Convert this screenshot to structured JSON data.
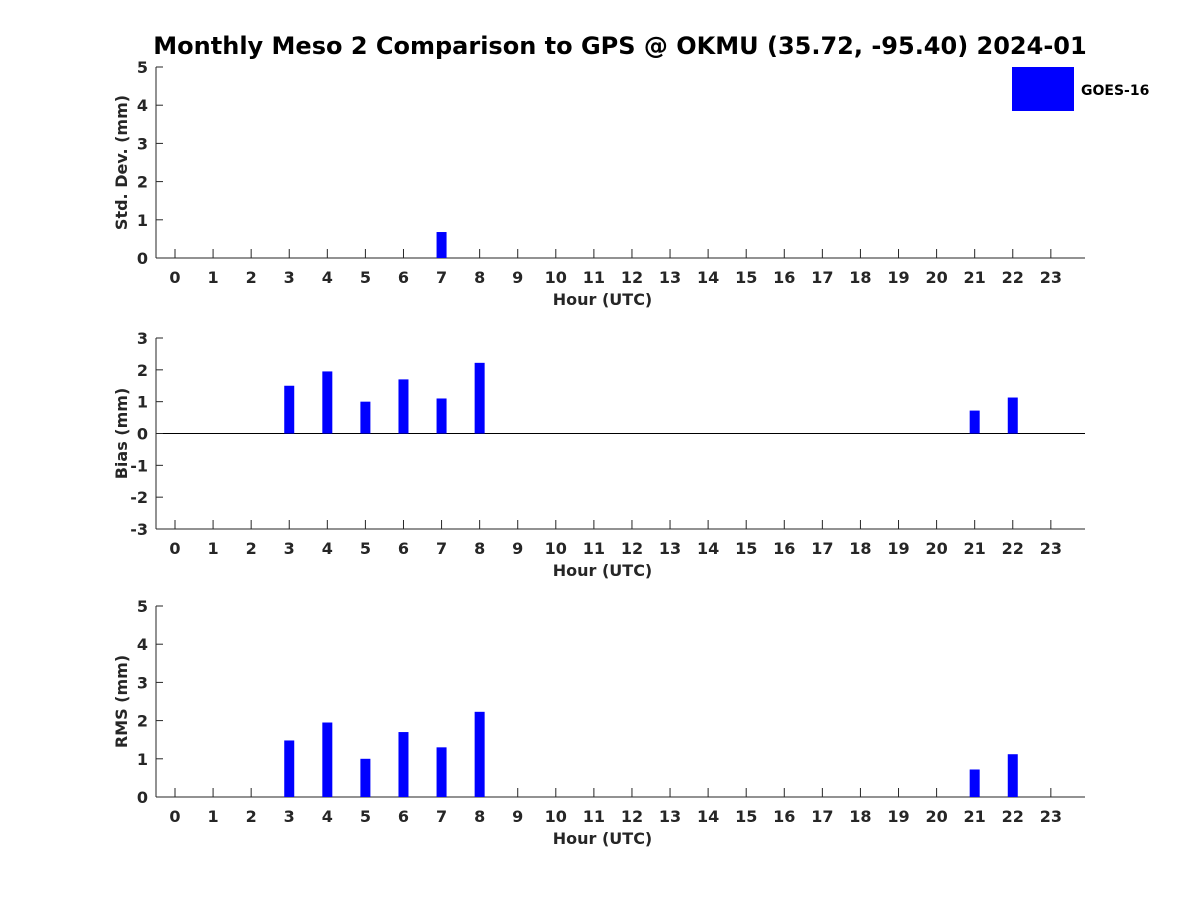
{
  "chart_data": {
    "title": "Monthly Meso 2 Comparison to GPS @ OKMU (35.72, -95.40) 2024-01",
    "legend": {
      "label": "GOES-16",
      "color": "#0000ff",
      "placement": "top-right"
    },
    "bar_color": "#0000ff",
    "grid": false,
    "panels": [
      {
        "id": "stddev",
        "type": "bar",
        "ylabel": "Std. Dev. (mm)",
        "xlabel": "Hour (UTC)",
        "ylim": [
          0,
          5
        ],
        "yticks": [
          "0",
          "1",
          "2",
          "3",
          "4",
          "5"
        ],
        "xticks": [
          "0",
          "1",
          "2",
          "3",
          "4",
          "5",
          "6",
          "7",
          "8",
          "9",
          "10",
          "11",
          "12",
          "13",
          "14",
          "15",
          "16",
          "17",
          "18",
          "19",
          "20",
          "21",
          "22",
          "23"
        ],
        "x": [
          7
        ],
        "values": [
          0.68
        ]
      },
      {
        "id": "bias",
        "type": "bar",
        "ylabel": "Bias (mm)",
        "xlabel": "Hour (UTC)",
        "ylim": [
          -3,
          3
        ],
        "yticks": [
          "-3",
          "-2",
          "-1",
          "0",
          "1",
          "2",
          "3"
        ],
        "xticks": [
          "0",
          "1",
          "2",
          "3",
          "4",
          "5",
          "6",
          "7",
          "8",
          "9",
          "10",
          "11",
          "12",
          "13",
          "14",
          "15",
          "16",
          "17",
          "18",
          "19",
          "20",
          "21",
          "22",
          "23"
        ],
        "x": [
          3,
          4,
          5,
          6,
          7,
          8,
          21,
          22
        ],
        "values": [
          1.5,
          1.95,
          1.0,
          1.7,
          1.1,
          2.22,
          0.72,
          1.13
        ]
      },
      {
        "id": "rms",
        "type": "bar",
        "ylabel": "RMS (mm)",
        "xlabel": "Hour (UTC)",
        "ylim": [
          0,
          5
        ],
        "yticks": [
          "0",
          "1",
          "2",
          "3",
          "4",
          "5"
        ],
        "xticks": [
          "0",
          "1",
          "2",
          "3",
          "4",
          "5",
          "6",
          "7",
          "8",
          "9",
          "10",
          "11",
          "12",
          "13",
          "14",
          "15",
          "16",
          "17",
          "18",
          "19",
          "20",
          "21",
          "22",
          "23"
        ],
        "x": [
          3,
          4,
          5,
          6,
          7,
          8,
          21,
          22
        ],
        "values": [
          1.48,
          1.95,
          1.0,
          1.7,
          1.3,
          2.23,
          0.72,
          1.12
        ]
      }
    ]
  }
}
